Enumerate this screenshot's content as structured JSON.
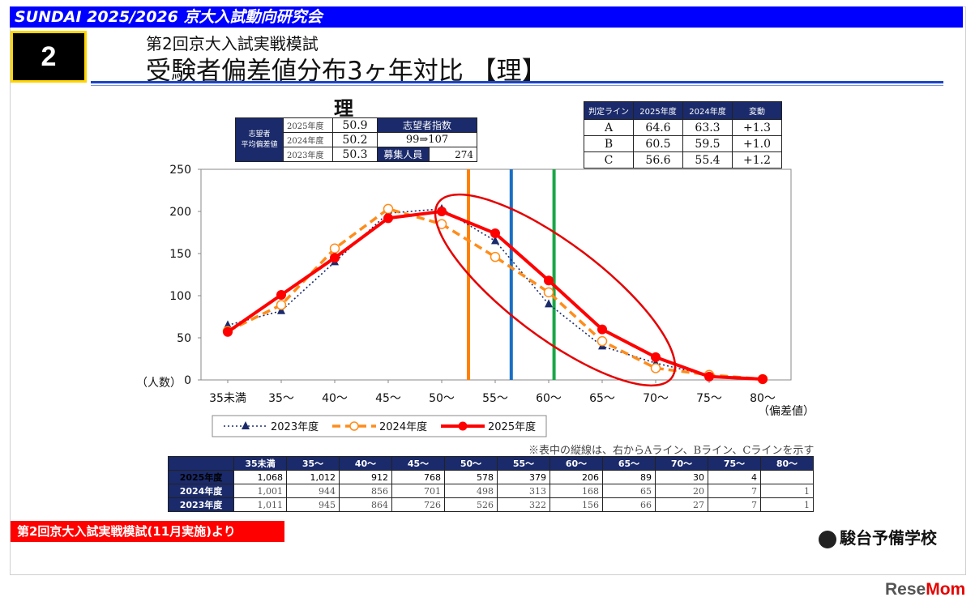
{
  "header": {
    "banner": "SUNDAI 2025/2026  京大入試動向研究会",
    "section_number": "2",
    "subtitle": "第2回京大入試実戦模試",
    "title": "受験者偏差値分布3ヶ年対比 【理】"
  },
  "chart_title": "理",
  "stats_table": {
    "row_label": "志望者\n平均偏差値",
    "rows": [
      {
        "year": "2025年度",
        "value": "50.9"
      },
      {
        "year": "2024年度",
        "value": "50.2"
      },
      {
        "year": "2023年度",
        "value": "50.3"
      }
    ],
    "index_label": "志望者指数",
    "index_value": "99⇒107",
    "capacity_label": "募集人員",
    "capacity_value": "274"
  },
  "judge_table": {
    "headers": [
      "判定ライン",
      "2025年度",
      "2024年度",
      "変動"
    ],
    "rows": [
      [
        "A",
        "64.6",
        "63.3",
        "+1.3"
      ],
      [
        "B",
        "60.5",
        "59.5",
        "+1.0"
      ],
      [
        "C",
        "56.6",
        "55.4",
        "+1.2"
      ]
    ]
  },
  "chart_data": {
    "type": "line",
    "categories": [
      "35未満",
      "35～",
      "40～",
      "45～",
      "50～",
      "55～",
      "60～",
      "65～",
      "70～",
      "75～",
      "80～"
    ],
    "ylabel": "（人数）",
    "xlabel": "（偏差値）",
    "ylim": [
      0,
      250
    ],
    "yticks": [
      0,
      50,
      100,
      150,
      200,
      250
    ],
    "series": [
      {
        "name": "2023年度",
        "color": "#1a2a6b",
        "style": "dotted",
        "marker": "triangle",
        "values": [
          65,
          82,
          140,
          198,
          203,
          165,
          90,
          40,
          20,
          5,
          1
        ]
      },
      {
        "name": "2024年度",
        "color": "#ff8c1a",
        "style": "dashed",
        "marker": "open-circle",
        "values": [
          58,
          89,
          156,
          203,
          185,
          146,
          104,
          46,
          14,
          6,
          1
        ]
      },
      {
        "name": "2025年度",
        "color": "#ff0000",
        "style": "solid",
        "marker": "filled-circle",
        "values": [
          57,
          101,
          145,
          192,
          200,
          174,
          118,
          60,
          27,
          4,
          1
        ]
      }
    ],
    "vertical_lines": [
      {
        "x": 57.5,
        "color": "#ff8000"
      },
      {
        "x": 61.5,
        "color": "#1a6fc4"
      },
      {
        "x": 65.5,
        "color": "#1aa64a"
      }
    ],
    "x_numeric": [
      35,
      40,
      45,
      50,
      55,
      60,
      65,
      70,
      75,
      80,
      85
    ]
  },
  "count_table": {
    "headers": [
      "",
      "35未満",
      "35～",
      "40～",
      "45～",
      "50～",
      "55～",
      "60～",
      "65～",
      "70～",
      "75～",
      "80～"
    ],
    "rows": [
      [
        "2025年度",
        "1,068",
        "1,012",
        "912",
        "768",
        "578",
        "379",
        "206",
        "89",
        "30",
        "4",
        ""
      ],
      [
        "2024年度",
        "1,001",
        "944",
        "856",
        "701",
        "498",
        "313",
        "168",
        "65",
        "20",
        "7",
        "1"
      ],
      [
        "2023年度",
        "1,011",
        "945",
        "864",
        "726",
        "526",
        "322",
        "156",
        "66",
        "27",
        "7",
        "1"
      ]
    ]
  },
  "note": "※表中の縦線は、右からAライン、Bライン、Cラインを示す",
  "source": "第2回京大入試実戦模試(11月実施)より",
  "logo": "駿台予備学校",
  "watermark": {
    "part1": "Rese",
    "part2": "Mom"
  }
}
